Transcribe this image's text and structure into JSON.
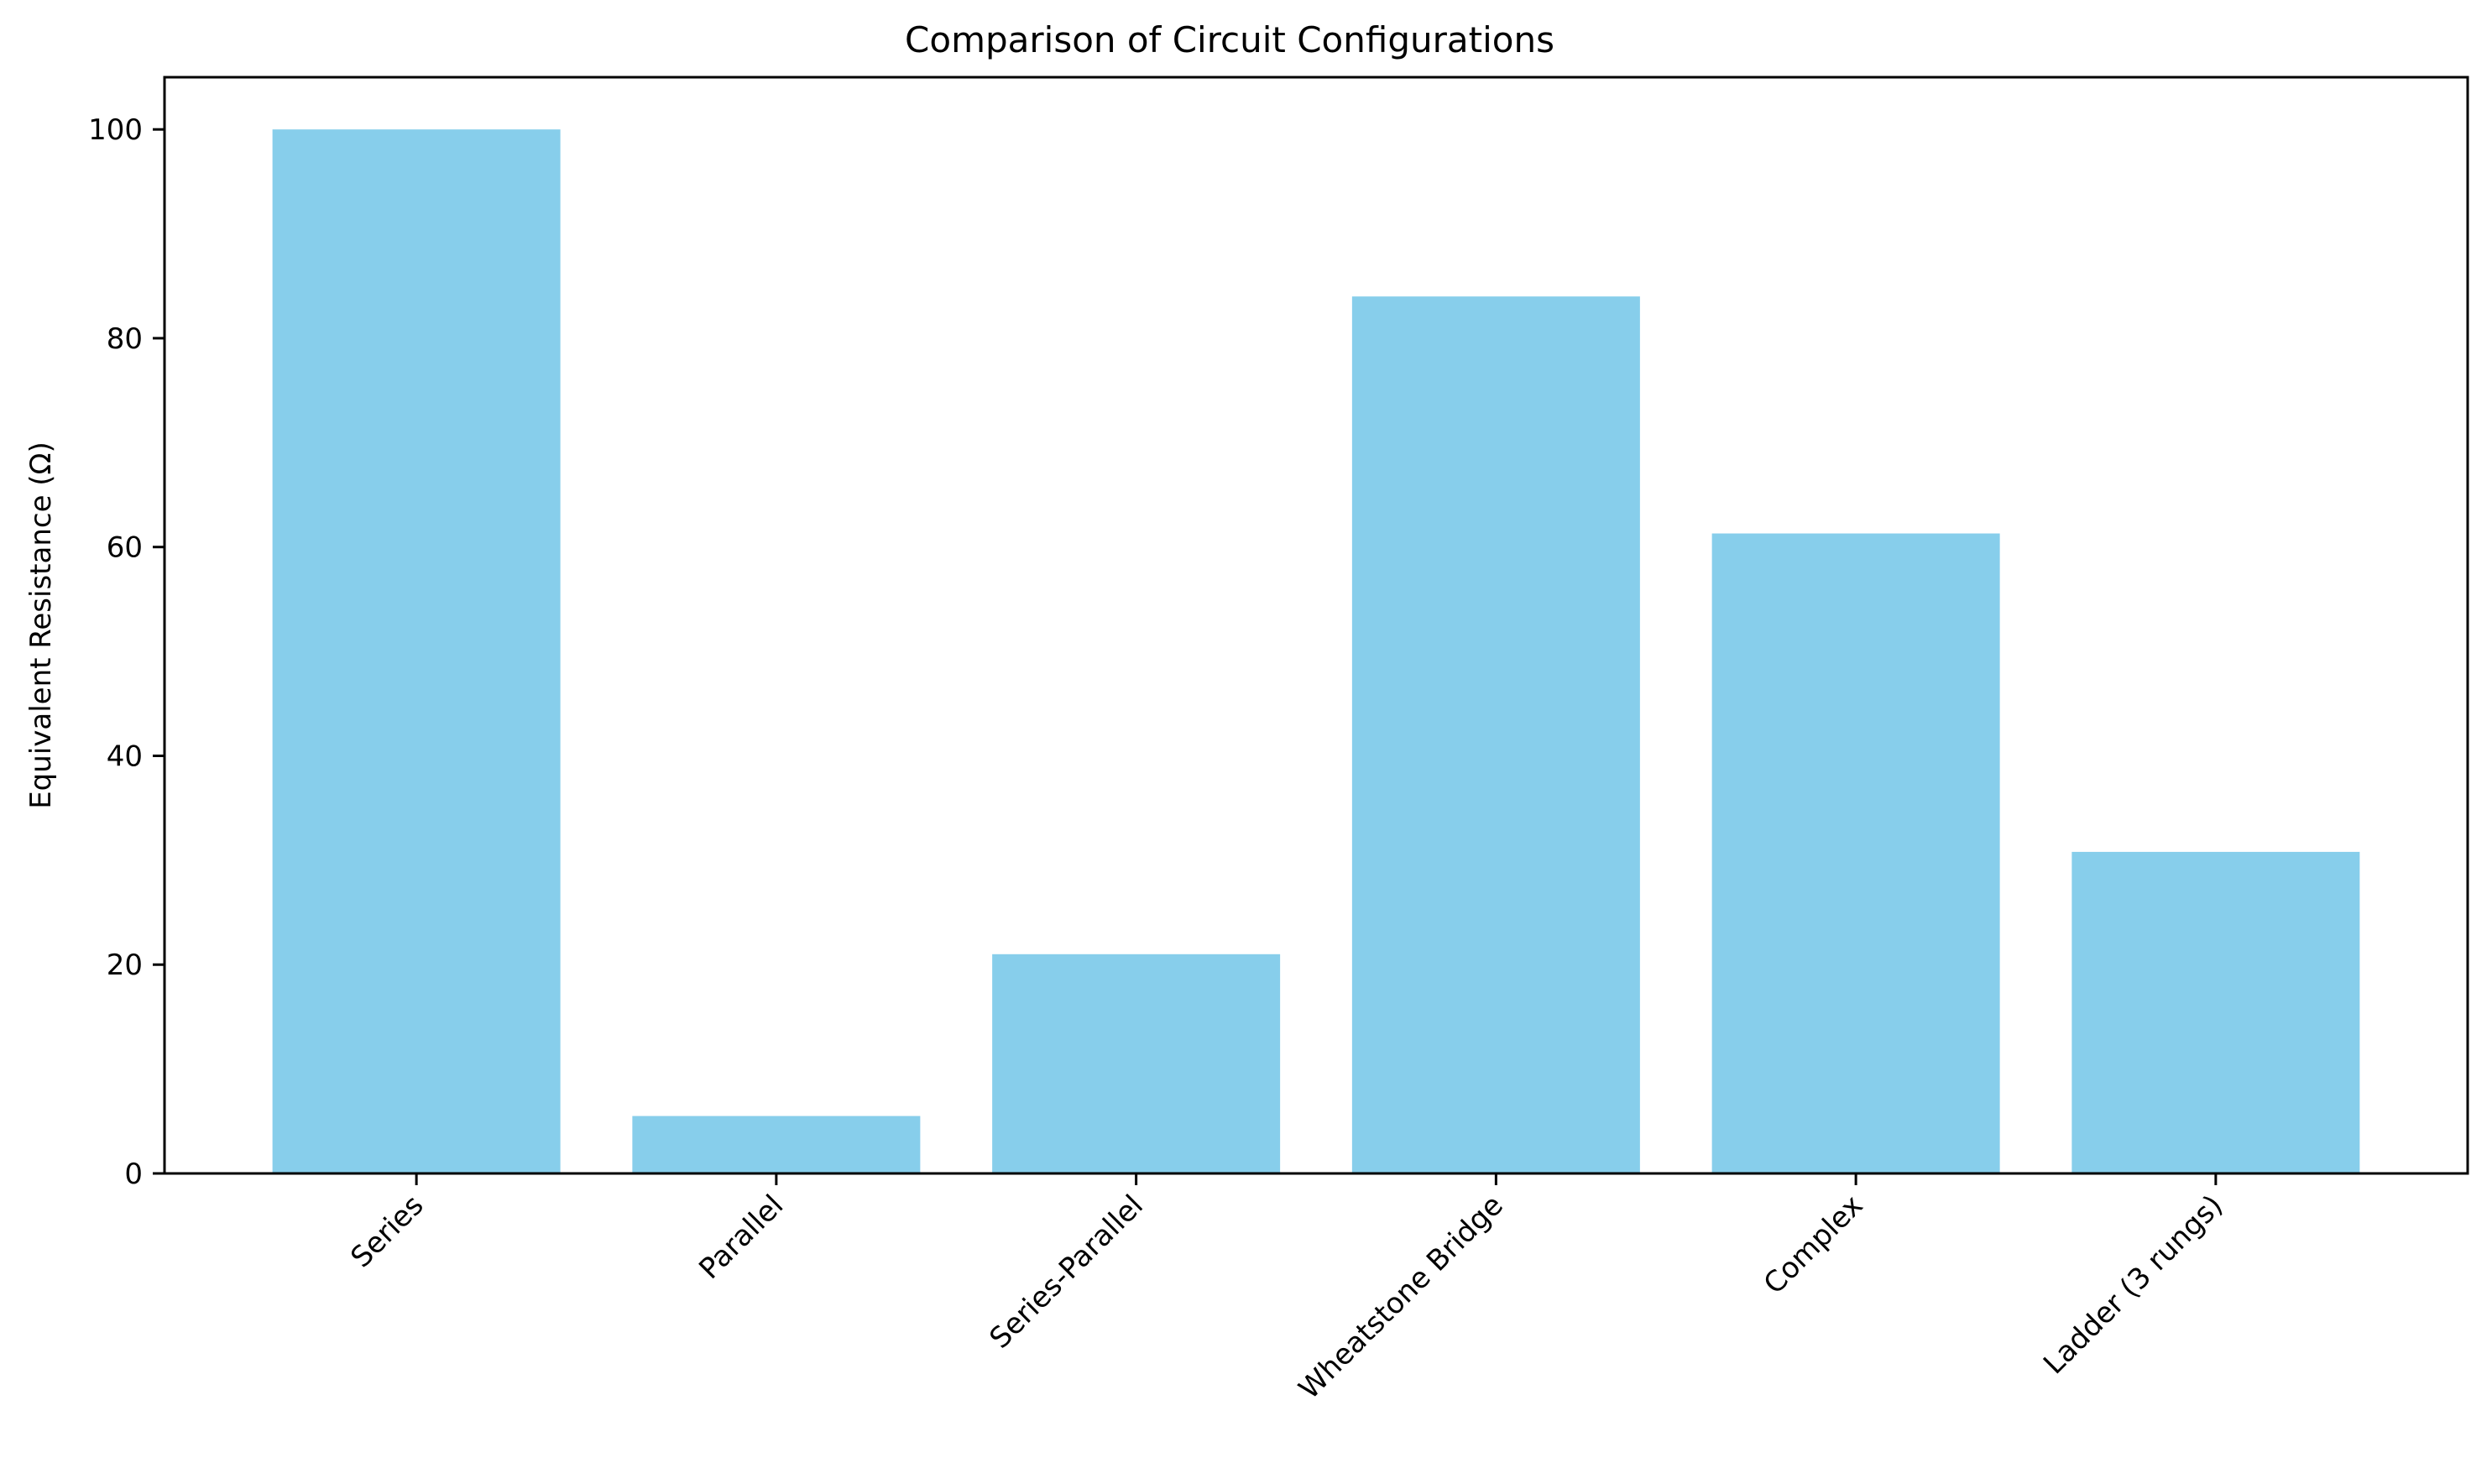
{
  "chart_data": {
    "type": "bar",
    "title": "Comparison of Circuit Configurations",
    "xlabel": "",
    "ylabel": "Equivalent Resistance (Ω)",
    "categories": [
      "Series",
      "Parallel",
      "Series-Parallel",
      "Wheatstone Bridge",
      "Complex",
      "Ladder (3 rungs)"
    ],
    "values": [
      100,
      5.5,
      21,
      84,
      61.3,
      30.8
    ],
    "ylim": [
      0,
      105
    ],
    "yticks": [
      0,
      20,
      40,
      60,
      80,
      100
    ],
    "ytick_labels": [
      "0",
      "20",
      "40",
      "60",
      "80",
      "100"
    ],
    "grid": false,
    "bar_color": "#87CEEB",
    "tick_label_rotation": -45
  }
}
